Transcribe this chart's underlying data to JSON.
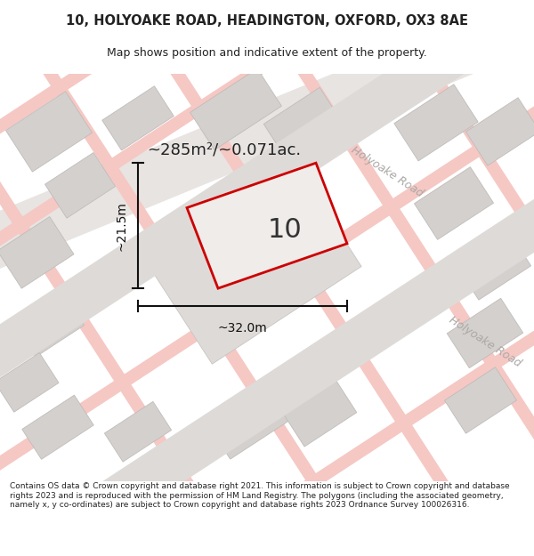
{
  "title": "10, HOLYOAKE ROAD, HEADINGTON, OXFORD, OX3 8AE",
  "subtitle": "Map shows position and indicative extent of the property.",
  "footer": "Contains OS data © Crown copyright and database right 2021. This information is subject to Crown copyright and database rights 2023 and is reproduced with the permission of HM Land Registry. The polygons (including the associated geometry, namely x, y co-ordinates) are subject to Crown copyright and database rights 2023 Ordnance Survey 100026316.",
  "title_color": "#222222",
  "footer_color": "#222222",
  "area_text": "~285m²/~0.071ac.",
  "width_text": "~32.0m",
  "height_text": "~21.5m",
  "property_number": "10",
  "map_bg": "#ebe7e5",
  "road_pink": "#f5c8c4",
  "road_gray": "#d8d4d2",
  "building_fill": "#d4d0ce",
  "building_edge": "#c0bcba",
  "prop_fill": "#e8e4e2",
  "prop_edge": "#cc0000",
  "road_label_color": "#aaa8a6",
  "road_label1": "Holyoake Road",
  "road_label2": "Holyoake Road",
  "dim_color": "#111111",
  "annotation_color": "#222222"
}
